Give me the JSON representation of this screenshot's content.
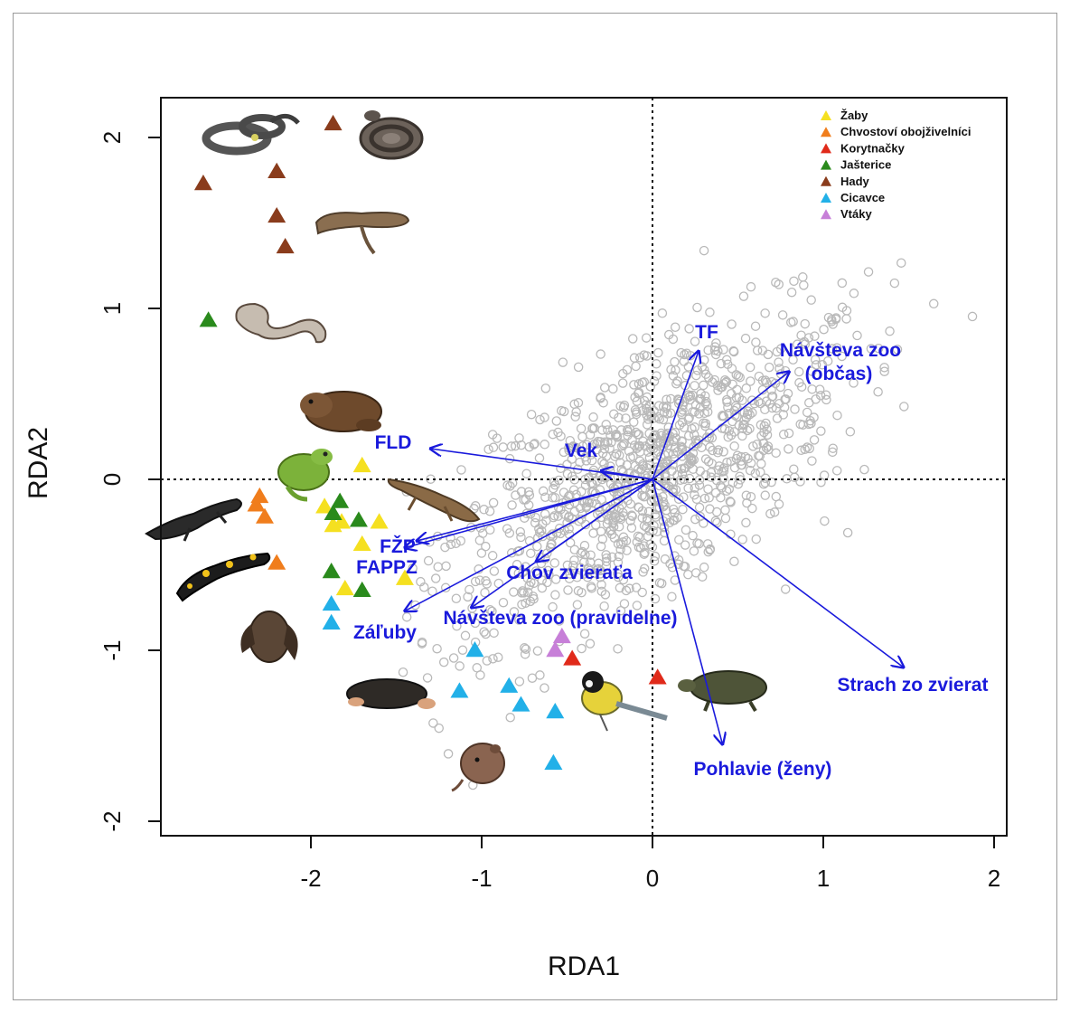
{
  "chart_data": {
    "type": "scatter",
    "xlabel": "RDA1",
    "ylabel": "RDA2",
    "xlim": [
      -2.9,
      2.05
    ],
    "ylim": [
      -2.07,
      2.25
    ],
    "xticks": [
      -2,
      -1,
      0,
      1,
      2
    ],
    "yticks": [
      -2,
      -1,
      0,
      1,
      2
    ],
    "xtick_labels": [
      "-2",
      "-1",
      "0",
      "1",
      "2"
    ],
    "ytick_labels": [
      "-2",
      "-1",
      "0",
      "1",
      "2"
    ],
    "reference_lines": {
      "x": 0,
      "y": 0,
      "style": "dotted"
    },
    "legend": {
      "placement": "top-right",
      "entries": [
        {
          "label": "Žaby",
          "color": "#f5e020"
        },
        {
          "label": "Chvostoví obojživelníci",
          "color": "#f07d1c"
        },
        {
          "label": "Korytnačky",
          "color": "#e02a1a"
        },
        {
          "label": "Jašterice",
          "color": "#2a8a1c"
        },
        {
          "label": "Hady",
          "color": "#8a3c1c"
        },
        {
          "label": "Cicavce",
          "color": "#22b0e8"
        },
        {
          "label": "Vtáky",
          "color": "#c77fd8"
        }
      ]
    },
    "species_series": [
      {
        "name": "Žaby",
        "points": [
          [
            -1.7,
            0.08
          ],
          [
            -1.92,
            -0.16
          ],
          [
            -1.82,
            -0.25
          ],
          [
            -1.87,
            -0.27
          ],
          [
            -1.6,
            -0.25
          ],
          [
            -1.7,
            -0.38
          ],
          [
            -1.45,
            -0.58
          ],
          [
            -1.8,
            -0.64
          ]
        ]
      },
      {
        "name": "Chvostoví obojživelníci",
        "points": [
          [
            -2.3,
            -0.1
          ],
          [
            -2.32,
            -0.15
          ],
          [
            -2.27,
            -0.22
          ],
          [
            -2.2,
            -0.49
          ]
        ]
      },
      {
        "name": "Korytnačky",
        "points": [
          [
            -0.47,
            -1.05
          ],
          [
            0.03,
            -1.16
          ]
        ]
      },
      {
        "name": "Jašterice",
        "points": [
          [
            -2.6,
            0.93
          ],
          [
            -1.83,
            -0.13
          ],
          [
            -1.87,
            -0.2
          ],
          [
            -1.72,
            -0.24
          ],
          [
            -1.88,
            -0.54
          ],
          [
            -1.7,
            -0.65
          ]
        ]
      },
      {
        "name": "Hady",
        "points": [
          [
            -1.87,
            2.08
          ],
          [
            -2.63,
            1.73
          ],
          [
            -2.2,
            1.8
          ],
          [
            -2.2,
            1.54
          ],
          [
            -2.15,
            1.36
          ]
        ]
      },
      {
        "name": "Cicavce",
        "points": [
          [
            -1.88,
            -0.73
          ],
          [
            -1.88,
            -0.84
          ],
          [
            -1.04,
            -1.0
          ],
          [
            -1.13,
            -1.24
          ],
          [
            -0.84,
            -1.21
          ],
          [
            -0.77,
            -1.32
          ],
          [
            -0.57,
            -1.36
          ],
          [
            -0.58,
            -1.66
          ]
        ]
      },
      {
        "name": "Vtáky",
        "points": [
          [
            -0.53,
            -0.92
          ],
          [
            -0.57,
            -1.0
          ]
        ]
      }
    ],
    "arrows": [
      {
        "label": "TF",
        "x": 0.27,
        "y": 0.75
      },
      {
        "label": "Návšteva zoo (občas)",
        "label_lines": [
          "Návšteva zoo",
          "(občas)"
        ],
        "x": 0.8,
        "y": 0.63
      },
      {
        "label": "FLD",
        "x": -1.3,
        "y": 0.18
      },
      {
        "label": "Vek",
        "x": -0.3,
        "y": 0.05
      },
      {
        "label": "FŽP",
        "x": -1.38,
        "y": -0.36
      },
      {
        "label": "FAPPZ",
        "x": -1.45,
        "y": -0.4
      },
      {
        "label": "Chov zvieraťa",
        "x": -0.68,
        "y": -0.48
      },
      {
        "label": "Záľuby",
        "x": -1.45,
        "y": -0.77
      },
      {
        "label": "Návšteva zoo (pravidelne)",
        "x": -1.06,
        "y": -0.75
      },
      {
        "label": "Strach zo zvierat",
        "x": 1.47,
        "y": -1.1
      },
      {
        "label": "Pohlavie (ženy)",
        "x": 0.41,
        "y": -1.55
      }
    ]
  },
  "icons": [
    "grass-snake-photo-icon",
    "adder-photo-icon",
    "smooth-snake-photo-icon",
    "slow-worm-photo-icon",
    "toad-photo-icon",
    "tree-frog-photo-icon",
    "newt-photo-icon",
    "fire-salamander-photo-icon",
    "lizard-photo-icon",
    "bat-photo-icon",
    "mole-photo-icon",
    "vole-photo-icon",
    "great-tit-photo-icon",
    "turtle-photo-icon"
  ]
}
